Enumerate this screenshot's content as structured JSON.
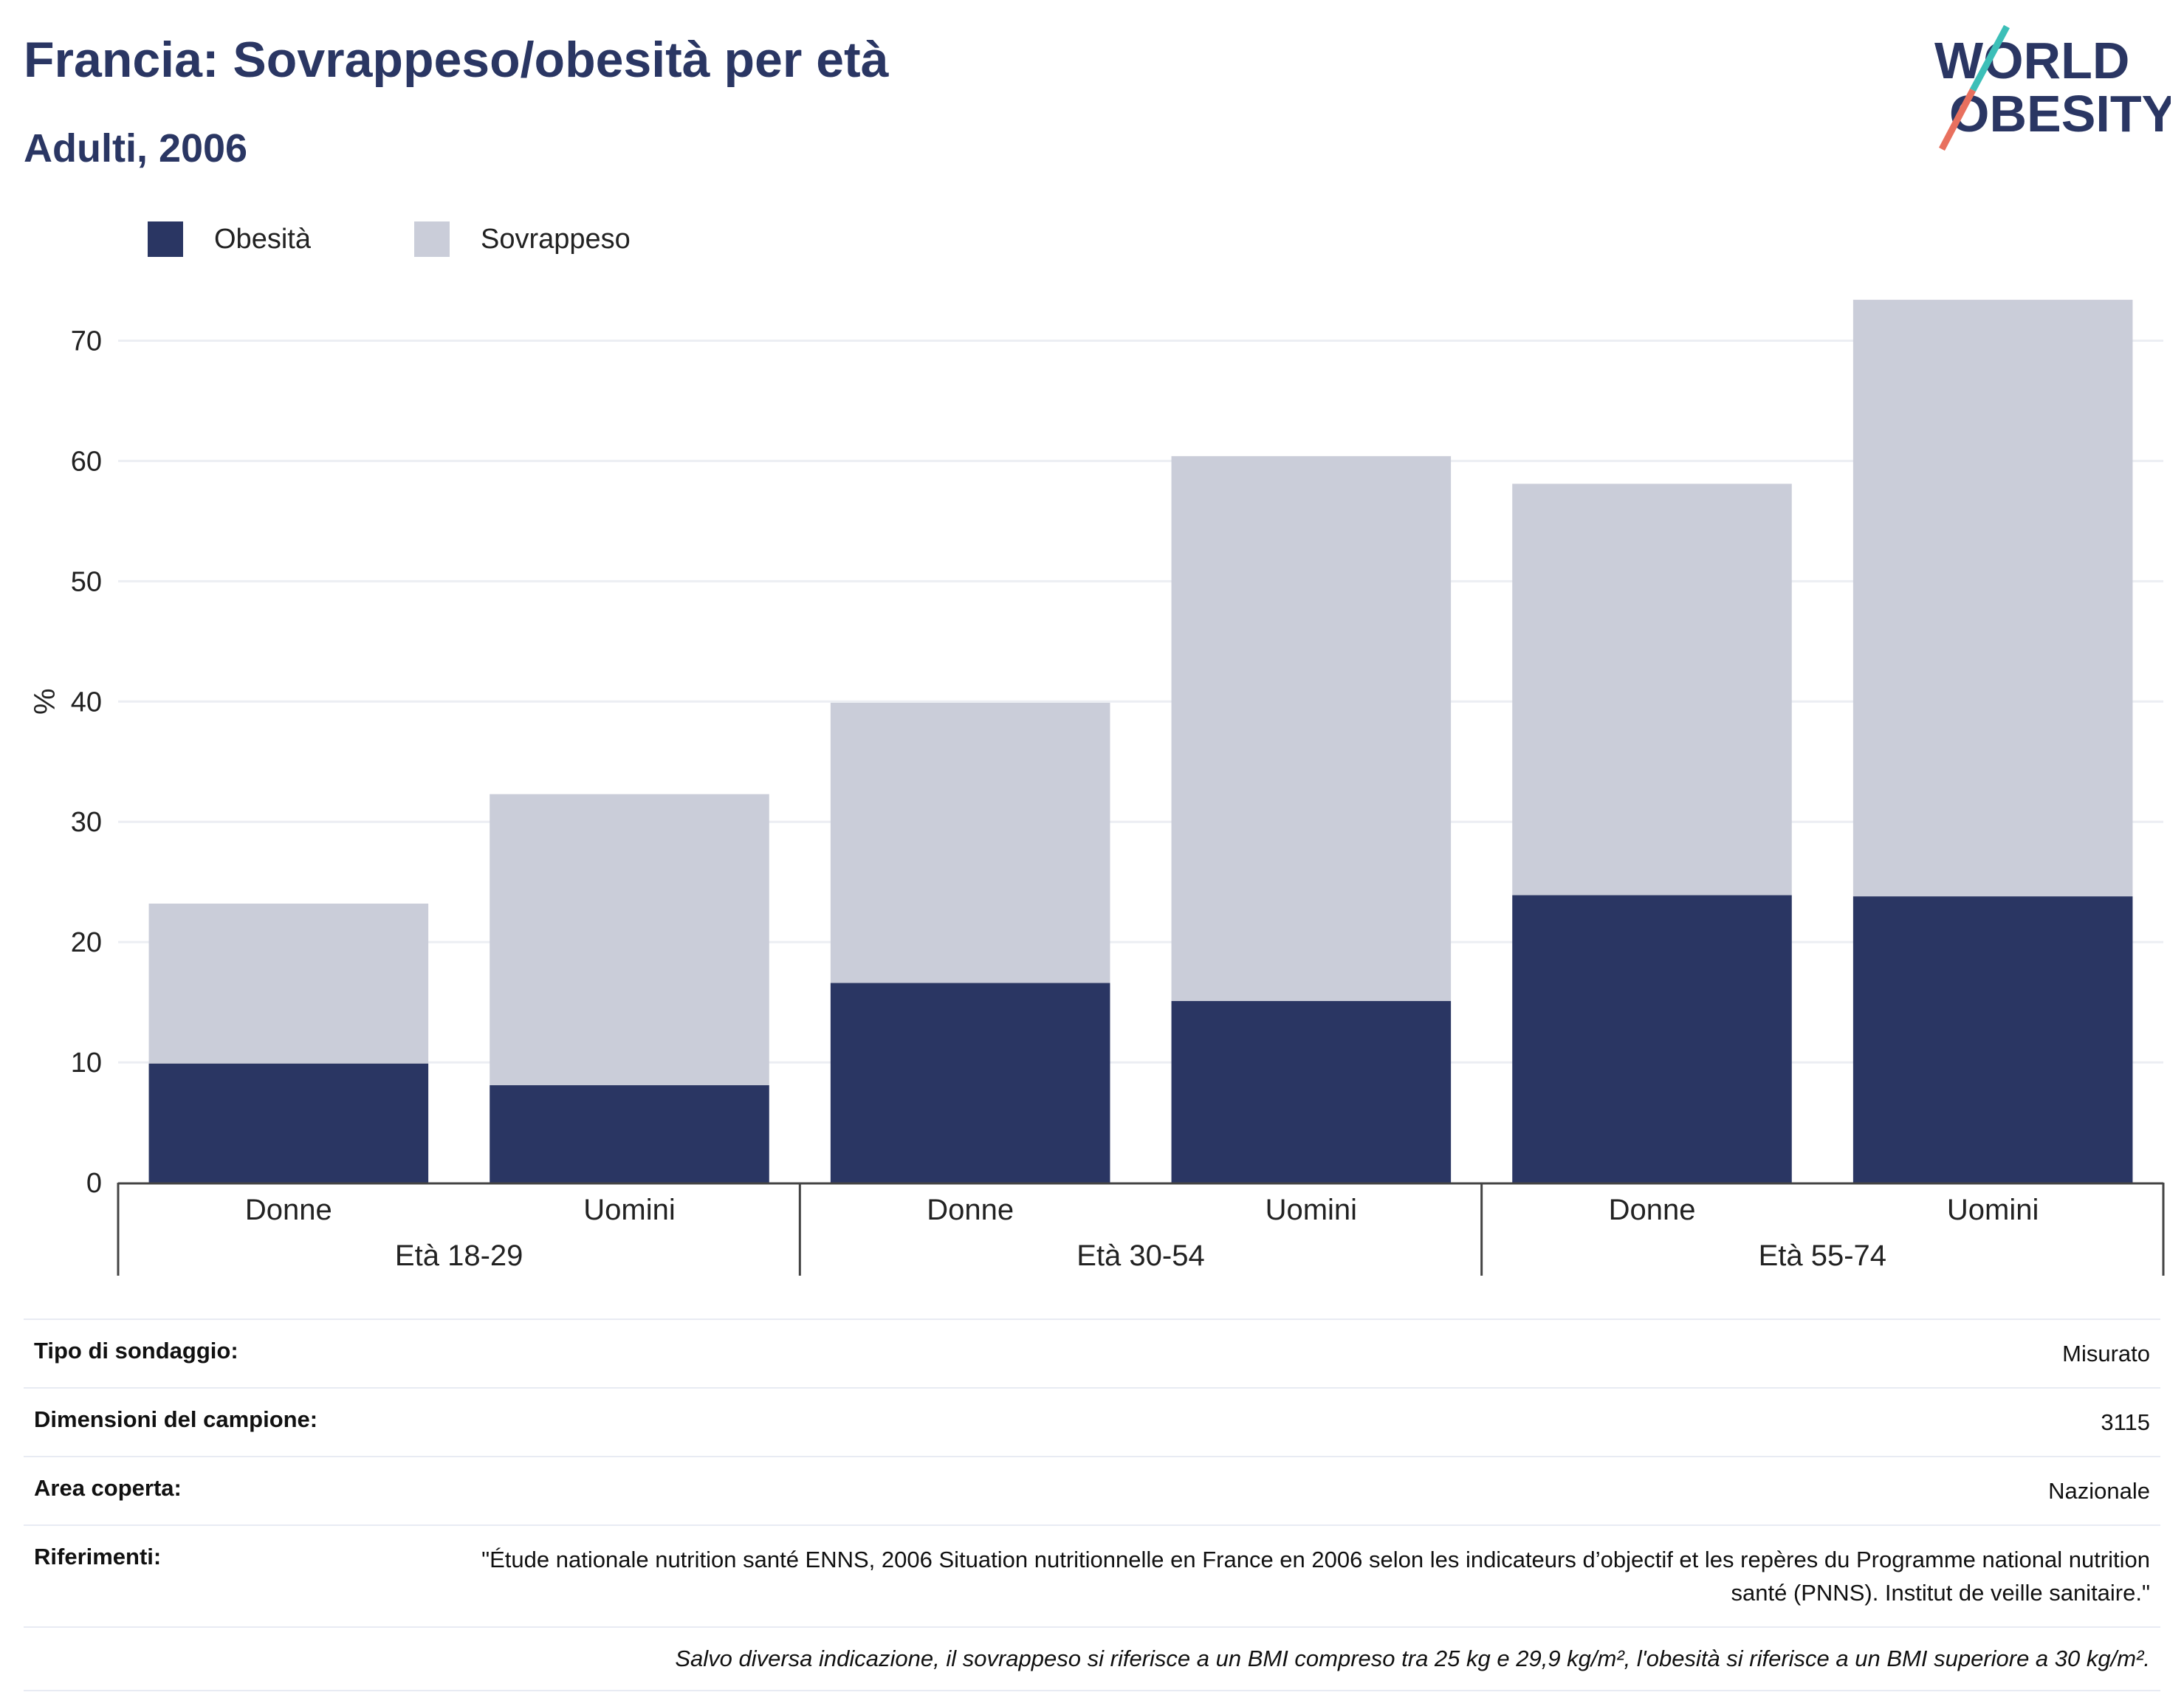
{
  "header": {
    "title": "Francia: Sovrappeso/obesità per età",
    "subtitle": "Adulti, 2006"
  },
  "logo": {
    "line1": "WORLD",
    "line2": "OBESITY"
  },
  "colors": {
    "obesity": "#2a3663",
    "overweight": "#cacdd9",
    "text": "#2a3663",
    "grid": "#eceef3",
    "accent_teal": "#3cbfb8",
    "accent_red": "#e8705e"
  },
  "legend": [
    {
      "label": "Obesità",
      "color": "#2a3663"
    },
    {
      "label": "Sovrappeso",
      "color": "#cacdd9"
    }
  ],
  "chart_data": {
    "type": "bar",
    "stacked": true,
    "ylabel": "%",
    "ylim": [
      0,
      75
    ],
    "yticks": [
      0,
      10,
      20,
      30,
      40,
      50,
      60,
      70
    ],
    "grid": true,
    "legend_position": "top-left",
    "categories": [
      "Donne",
      "Uomini",
      "Donne",
      "Uomini",
      "Donne",
      "Uomini"
    ],
    "groups": [
      {
        "label": "Età 18-29",
        "categories": [
          "Donne",
          "Uomini"
        ]
      },
      {
        "label": "Età 30-54",
        "categories": [
          "Donne",
          "Uomini"
        ]
      },
      {
        "label": "Età 55-74",
        "categories": [
          "Donne",
          "Uomini"
        ]
      }
    ],
    "series": [
      {
        "name": "Obesità",
        "values": [
          9.9,
          8.1,
          16.6,
          15.1,
          23.9,
          23.8
        ]
      },
      {
        "name": "Sovrappeso",
        "values": [
          13.3,
          24.2,
          23.3,
          45.3,
          34.2,
          49.6
        ]
      }
    ]
  },
  "info": {
    "survey_type": {
      "label": "Tipo di sondaggio:",
      "value": "Misurato"
    },
    "sample_size": {
      "label": "Dimensioni del campione:",
      "value": "3115"
    },
    "area": {
      "label": "Area coperta:",
      "value": "Nazionale"
    },
    "references": {
      "label": "Riferimenti:",
      "value": "\"Étude nationale nutrition santé ENNS, 2006 Situation nutritionnelle en France en 2006 selon les indicateurs d’objectif et les repères du Programme national nutrition santé (PNNS). Institut de veille sanitaire.\""
    },
    "note": "Salvo diversa indicazione, il sovrappeso si riferisce a un BMI compreso tra 25 kg e 29,9 kg/m², l'obesità si riferisce a un BMI superiore a 30 kg/m²."
  }
}
